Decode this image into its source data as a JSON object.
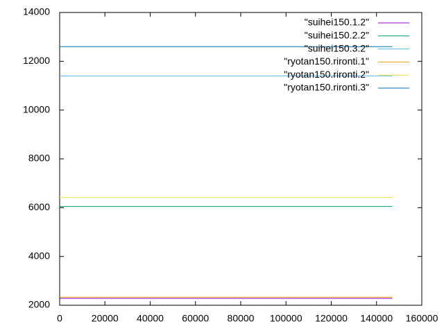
{
  "chart_data": {
    "type": "line",
    "x": [
      0,
      147000
    ],
    "series": [
      {
        "name": "\"suihei150.1.2\"",
        "color": "#9400d3",
        "values": [
          2280,
          2280
        ]
      },
      {
        "name": "\"suihei150.2.2\"",
        "color": "#009e73",
        "values": [
          6050,
          6050
        ]
      },
      {
        "name": "\"suihei150.3.2\"",
        "color": "#56b4e9",
        "values": [
          11400,
          11400
        ]
      },
      {
        "name": "\"ryotan150.rironti.1\"",
        "color": "#e69f00",
        "values": [
          2330,
          2330
        ]
      },
      {
        "name": "\"ryotan150.rironti.2\"",
        "color": "#f0e442",
        "values": [
          6420,
          6420
        ]
      },
      {
        "name": "\"ryotan150.rironti.3\"",
        "color": "#0072b2",
        "values": [
          12600,
          12600
        ]
      }
    ],
    "xlim": [
      0,
      160000
    ],
    "xticks": [
      0,
      20000,
      40000,
      60000,
      80000,
      100000,
      120000,
      140000,
      160000
    ],
    "ylim": [
      2000,
      14000
    ],
    "yticks": [
      2000,
      4000,
      6000,
      8000,
      10000,
      12000,
      14000
    ],
    "grid": false,
    "legend": "top-right"
  }
}
